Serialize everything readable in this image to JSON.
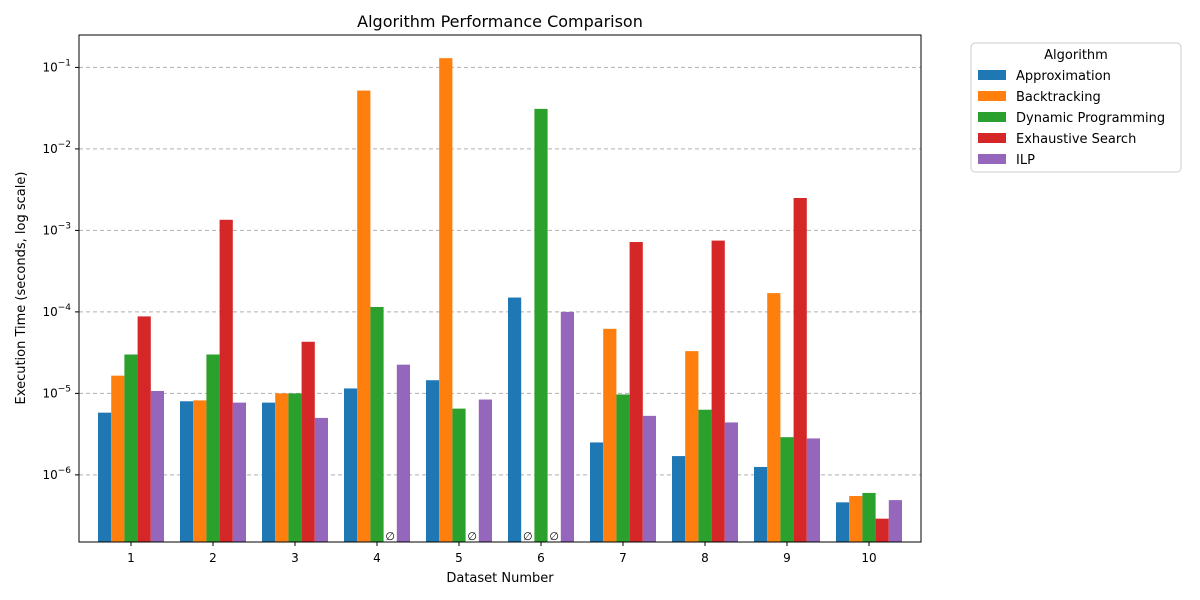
{
  "chart_data": {
    "type": "bar",
    "title": "Algorithm Performance Comparison",
    "xlabel": "Dataset Number",
    "ylabel": "Execution Time (seconds, log scale)",
    "yscale": "log",
    "ylim": [
      1.5e-07,
      0.25
    ],
    "yticks": [
      {
        "value": 1e-06,
        "base": "10",
        "exp": "−6"
      },
      {
        "value": 1e-05,
        "base": "10",
        "exp": "−5"
      },
      {
        "value": 0.0001,
        "base": "10",
        "exp": "−4"
      },
      {
        "value": 0.001,
        "base": "10",
        "exp": "−3"
      },
      {
        "value": 0.01,
        "base": "10",
        "exp": "−2"
      },
      {
        "value": 0.1,
        "base": "10",
        "exp": "−1"
      }
    ],
    "grid": "y",
    "categories": [
      "1",
      "2",
      "3",
      "4",
      "5",
      "6",
      "7",
      "8",
      "9",
      "10"
    ],
    "missing_marker": "∅",
    "legend": {
      "title": "Algorithm",
      "placement": "outside-right"
    },
    "series": [
      {
        "name": "Approximation",
        "color": "#1f77b4",
        "values": [
          5.8e-06,
          8e-06,
          7.7e-06,
          1.15e-05,
          1.45e-05,
          0.00015,
          2.5e-06,
          1.7e-06,
          1.25e-06,
          4.6e-07
        ]
      },
      {
        "name": "Backtracking",
        "color": "#ff7f0e",
        "values": [
          1.65e-05,
          8.2e-06,
          1e-05,
          0.052,
          0.13,
          null,
          6.2e-05,
          3.3e-05,
          0.00017,
          5.5e-07
        ]
      },
      {
        "name": "Dynamic Programming",
        "color": "#2ca02c",
        "values": [
          3e-05,
          3e-05,
          1e-05,
          0.000115,
          6.5e-06,
          0.031,
          9.7e-06,
          6.3e-06,
          2.9e-06,
          6e-07
        ]
      },
      {
        "name": "Exhaustive Search",
        "color": "#d62728",
        "values": [
          8.8e-05,
          0.00135,
          4.3e-05,
          null,
          null,
          null,
          0.00072,
          0.00075,
          0.0025,
          2.9e-07
        ]
      },
      {
        "name": "ILP",
        "color": "#9467bd",
        "values": [
          1.07e-05,
          7.7e-06,
          5e-06,
          2.25e-05,
          8.4e-06,
          0.0001,
          5.3e-06,
          4.4e-06,
          2.8e-06,
          4.9e-07
        ]
      }
    ]
  }
}
